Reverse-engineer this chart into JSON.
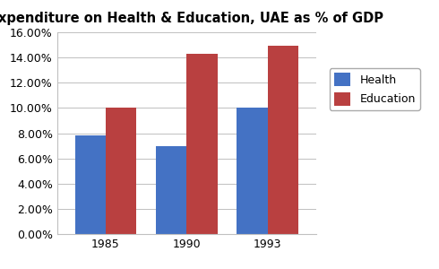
{
  "title": "Expenditure on Health & Education, UAE as % of GDP",
  "years": [
    "1985",
    "1990",
    "1993"
  ],
  "health": [
    0.078,
    0.07,
    0.1
  ],
  "education": [
    0.1,
    0.143,
    0.149
  ],
  "health_color": "#4472C4",
  "education_color": "#B94040",
  "legend_labels": [
    "Health",
    "Education"
  ],
  "ylim": [
    0,
    0.16
  ],
  "yticks": [
    0.0,
    0.02,
    0.04,
    0.06,
    0.08,
    0.1,
    0.12,
    0.14,
    0.16
  ],
  "title_fontsize": 10.5,
  "tick_fontsize": 9,
  "legend_fontsize": 9,
  "bar_width": 0.38,
  "background_color": "#ffffff"
}
